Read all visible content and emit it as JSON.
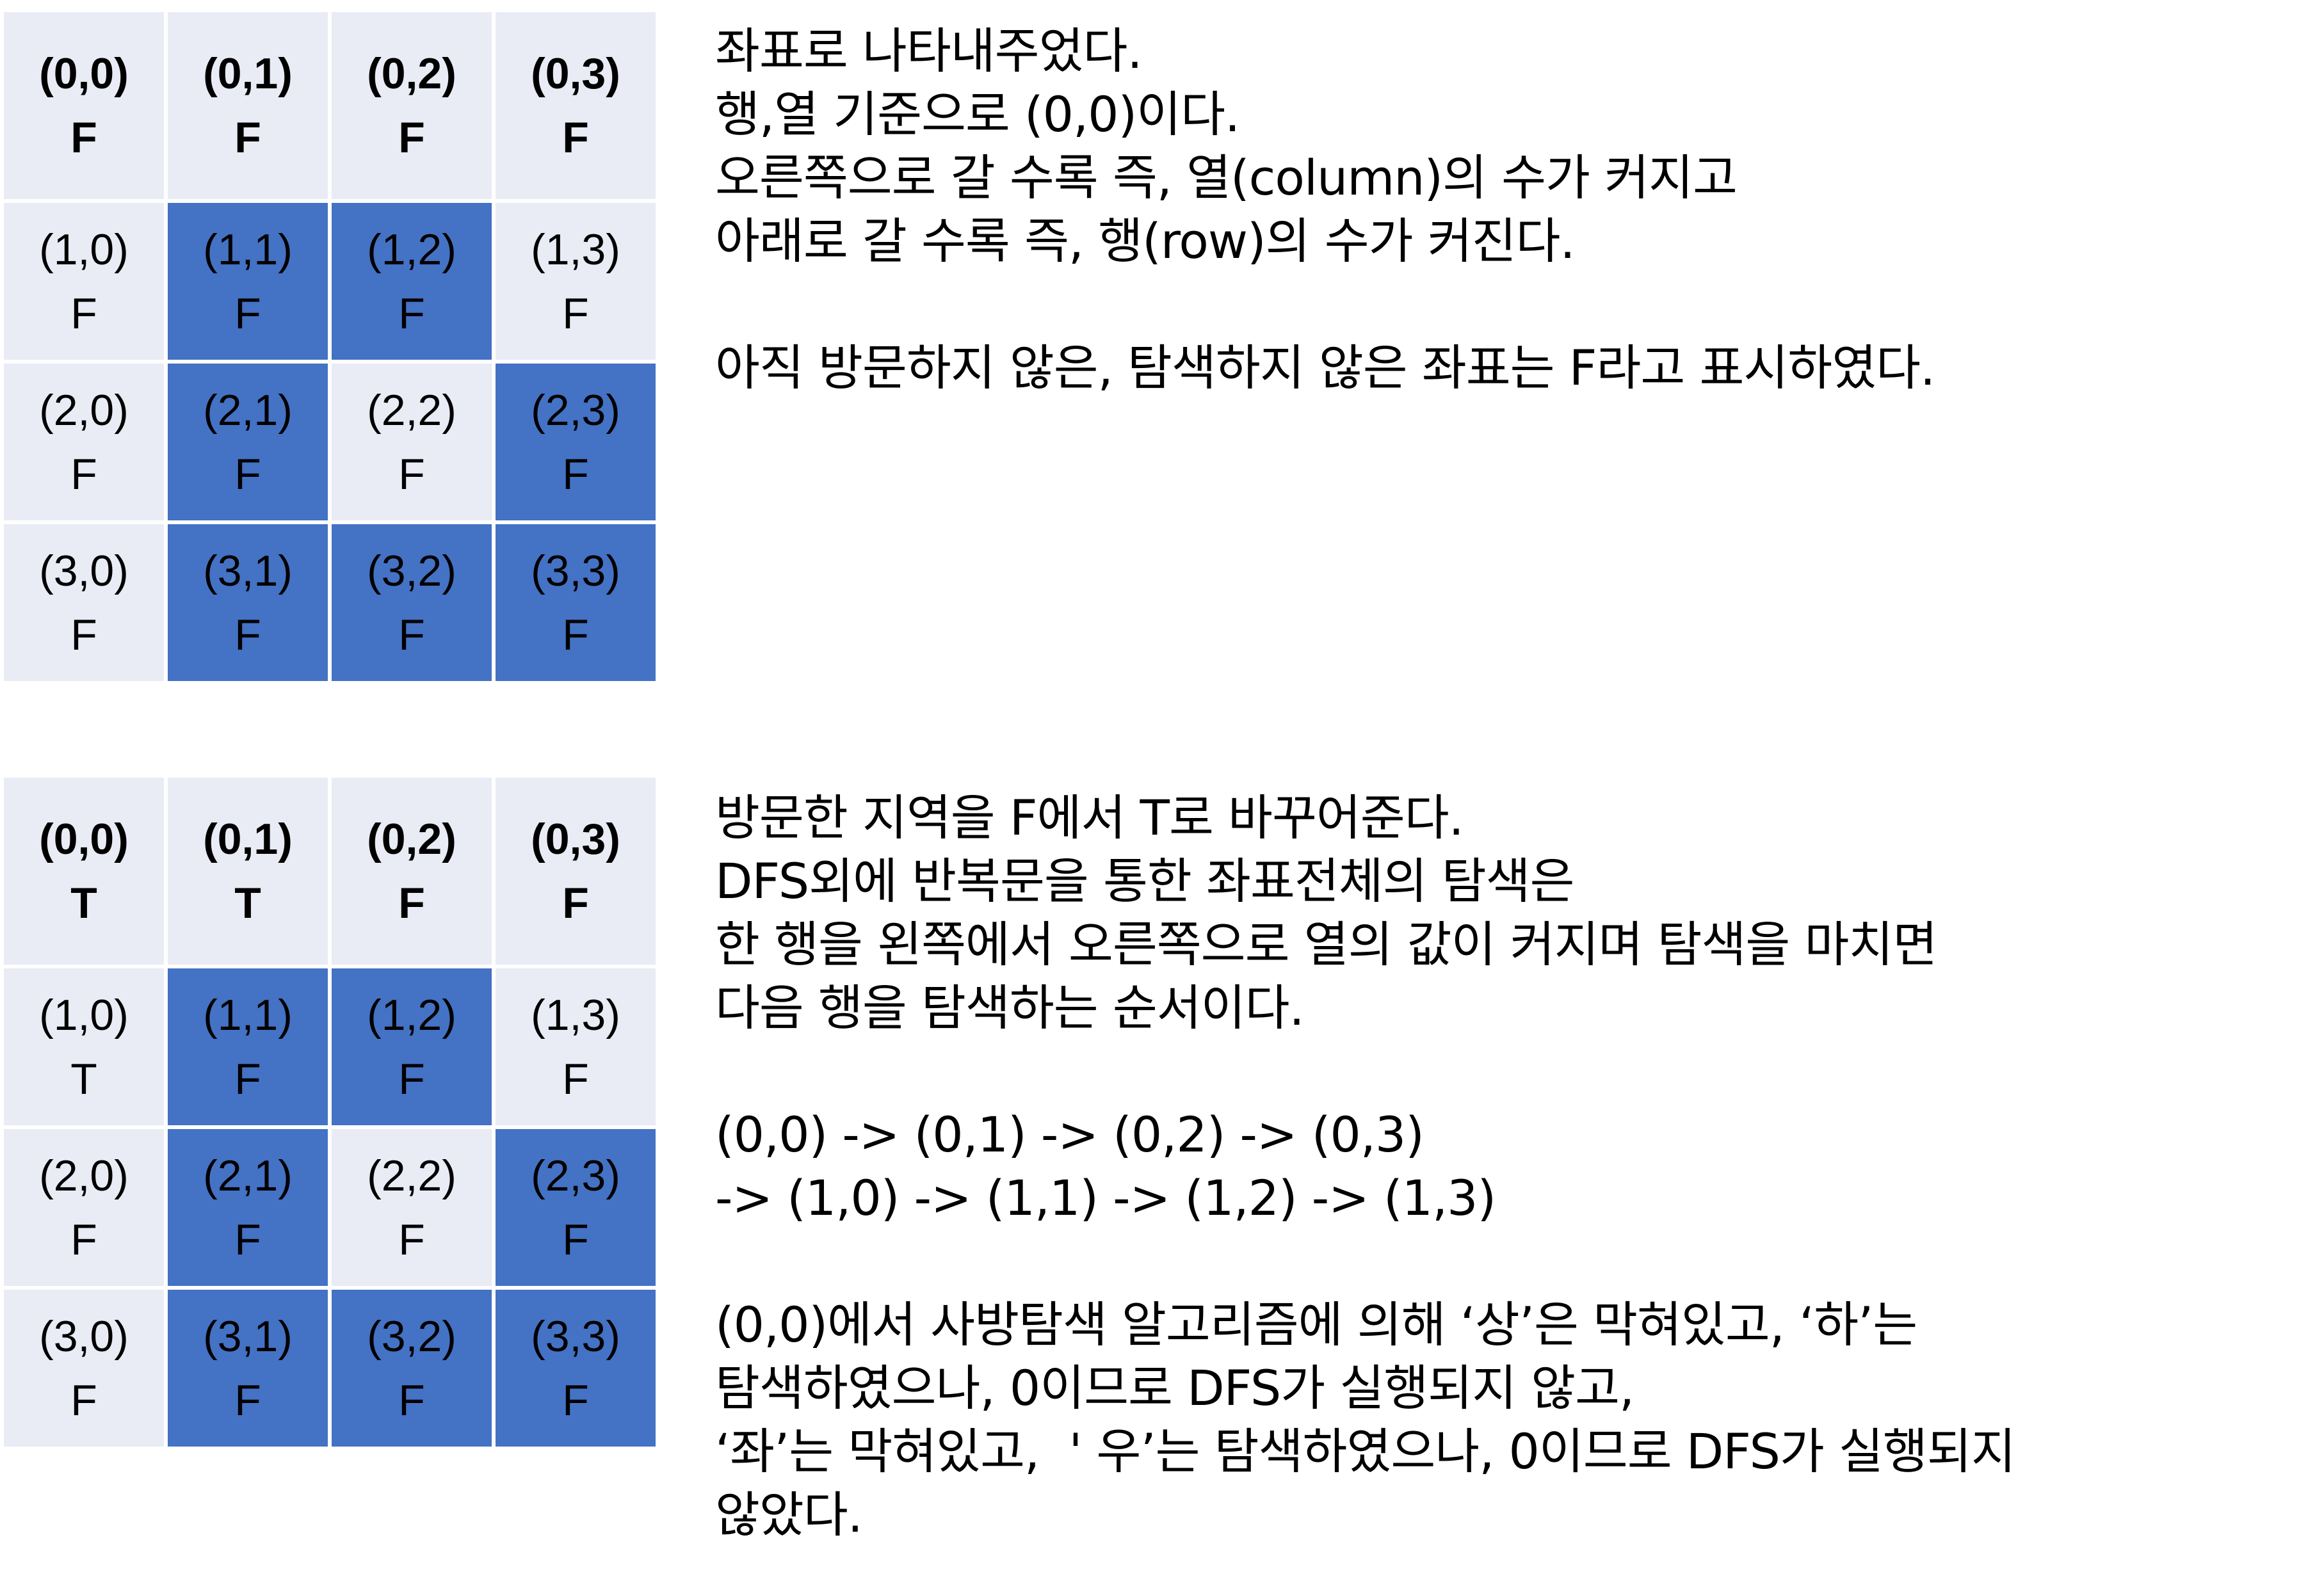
{
  "grid1": {
    "rows": [
      [
        {
          "coord": "(0,0)",
          "flag": "F",
          "blocked": false
        },
        {
          "coord": "(0,1)",
          "flag": "F",
          "blocked": false
        },
        {
          "coord": "(0,2)",
          "flag": "F",
          "blocked": false
        },
        {
          "coord": "(0,3)",
          "flag": "F",
          "blocked": false
        }
      ],
      [
        {
          "coord": "(1,0)",
          "flag": "F",
          "blocked": false
        },
        {
          "coord": "(1,1)",
          "flag": "F",
          "blocked": true
        },
        {
          "coord": "(1,2)",
          "flag": "F",
          "blocked": true
        },
        {
          "coord": "(1,3)",
          "flag": "F",
          "blocked": false
        }
      ],
      [
        {
          "coord": "(2,0)",
          "flag": "F",
          "blocked": false
        },
        {
          "coord": "(2,1)",
          "flag": "F",
          "blocked": true
        },
        {
          "coord": "(2,2)",
          "flag": "F",
          "blocked": false
        },
        {
          "coord": "(2,3)",
          "flag": "F",
          "blocked": true
        }
      ],
      [
        {
          "coord": "(3,0)",
          "flag": "F",
          "blocked": false
        },
        {
          "coord": "(3,1)",
          "flag": "F",
          "blocked": true
        },
        {
          "coord": "(3,2)",
          "flag": "F",
          "blocked": true
        },
        {
          "coord": "(3,3)",
          "flag": "F",
          "blocked": true
        }
      ]
    ]
  },
  "grid2": {
    "rows": [
      [
        {
          "coord": "(0,0)",
          "flag": "T",
          "blocked": false
        },
        {
          "coord": "(0,1)",
          "flag": "T",
          "blocked": false
        },
        {
          "coord": "(0,2)",
          "flag": "F",
          "blocked": false
        },
        {
          "coord": "(0,3)",
          "flag": "F",
          "blocked": false
        }
      ],
      [
        {
          "coord": "(1,0)",
          "flag": "T",
          "blocked": false
        },
        {
          "coord": "(1,1)",
          "flag": "F",
          "blocked": true
        },
        {
          "coord": "(1,2)",
          "flag": "F",
          "blocked": true
        },
        {
          "coord": "(1,3)",
          "flag": "F",
          "blocked": false
        }
      ],
      [
        {
          "coord": "(2,0)",
          "flag": "F",
          "blocked": false
        },
        {
          "coord": "(2,1)",
          "flag": "F",
          "blocked": true
        },
        {
          "coord": "(2,2)",
          "flag": "F",
          "blocked": false
        },
        {
          "coord": "(2,3)",
          "flag": "F",
          "blocked": true
        }
      ],
      [
        {
          "coord": "(3,0)",
          "flag": "F",
          "blocked": false
        },
        {
          "coord": "(3,1)",
          "flag": "F",
          "blocked": true
        },
        {
          "coord": "(3,2)",
          "flag": "F",
          "blocked": true
        },
        {
          "coord": "(3,3)",
          "flag": "F",
          "blocked": true
        }
      ]
    ]
  },
  "text1": {
    "lines": [
      "좌표로 나타내주었다.",
      "행,열 기준으로 (0,0)이다.",
      "오른쪽으로 갈 수록 즉, 열(column)의 수가 커지고",
      "아래로 갈 수록 즉, 행(row)의 수가 커진다.",
      "",
      "아직 방문하지 않은, 탐색하지 않은 좌표는 F라고 표시하였다."
    ]
  },
  "text2": {
    "lines": [
      "방문한 지역을 F에서 T로 바꾸어준다.",
      "DFS외에 반복문을 통한 좌표전체의 탐색은",
      "한 행을 왼쪽에서 오른쪽으로 열의 값이 커지며 탐색을 마치면",
      "다음 행을 탐색하는 순서이다.",
      "",
      "(0,0) -> (0,1) -> (0,2) -> (0,3)",
      "-> (1,0) -> (1,1) -> (1,2) -> (1,3)",
      "",
      "(0,0)에서 사방탐색 알고리즘에 의해 ‘상’은 막혀있고, ‘하’는",
      "탐색하였으나, 0이므로 DFS가 실행되지 않고,",
      "‘좌’는 막혀있고,  ' 우’는 탐색하였으나, 0이므로 DFS가 실행되지",
      "않았다."
    ]
  },
  "colors": {
    "open_cell": "#e9ebf5",
    "blocked_cell": "#4472c4"
  }
}
